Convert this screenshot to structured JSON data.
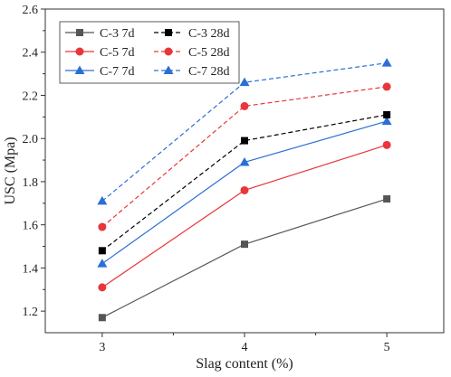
{
  "chart_data": {
    "type": "line",
    "xlabel": "Slag content (%)",
    "ylabel": "USC (Mpa)",
    "x": [
      3,
      4,
      5
    ],
    "xlim": [
      2.6,
      5.4
    ],
    "ylim": [
      1.1,
      2.6
    ],
    "yticks": [
      1.2,
      1.4,
      1.6,
      1.8,
      2.0,
      2.2,
      2.4,
      2.6
    ],
    "ytick_labels": [
      "1.2",
      "1.4",
      "1.6",
      "1.8",
      "2.0",
      "2.2",
      "2.4",
      "2.6"
    ],
    "xtick_labels": [
      "3",
      "4",
      "5"
    ],
    "legend_position": "top-left",
    "grid": false,
    "series": [
      {
        "name": "C-3 7d",
        "values": [
          1.17,
          1.51,
          1.72
        ],
        "color": "#555555",
        "marker": "square",
        "dashed": false
      },
      {
        "name": "C-5 7d",
        "values": [
          1.31,
          1.76,
          1.97
        ],
        "color": "#e8363a",
        "marker": "circle",
        "dashed": false
      },
      {
        "name": "C-7 7d",
        "values": [
          1.42,
          1.89,
          2.08
        ],
        "color": "#2b6fd6",
        "marker": "triangle",
        "dashed": false
      },
      {
        "name": "C-3 28d",
        "values": [
          1.48,
          1.99,
          2.11
        ],
        "color": "#000000",
        "marker": "square",
        "dashed": true
      },
      {
        "name": "C-5 28d",
        "values": [
          1.59,
          2.15,
          2.24
        ],
        "color": "#e8363a",
        "marker": "circle",
        "dashed": true
      },
      {
        "name": "C-7 28d",
        "values": [
          1.71,
          2.26,
          2.35
        ],
        "color": "#2b6fd6",
        "marker": "triangle",
        "dashed": true
      }
    ]
  }
}
